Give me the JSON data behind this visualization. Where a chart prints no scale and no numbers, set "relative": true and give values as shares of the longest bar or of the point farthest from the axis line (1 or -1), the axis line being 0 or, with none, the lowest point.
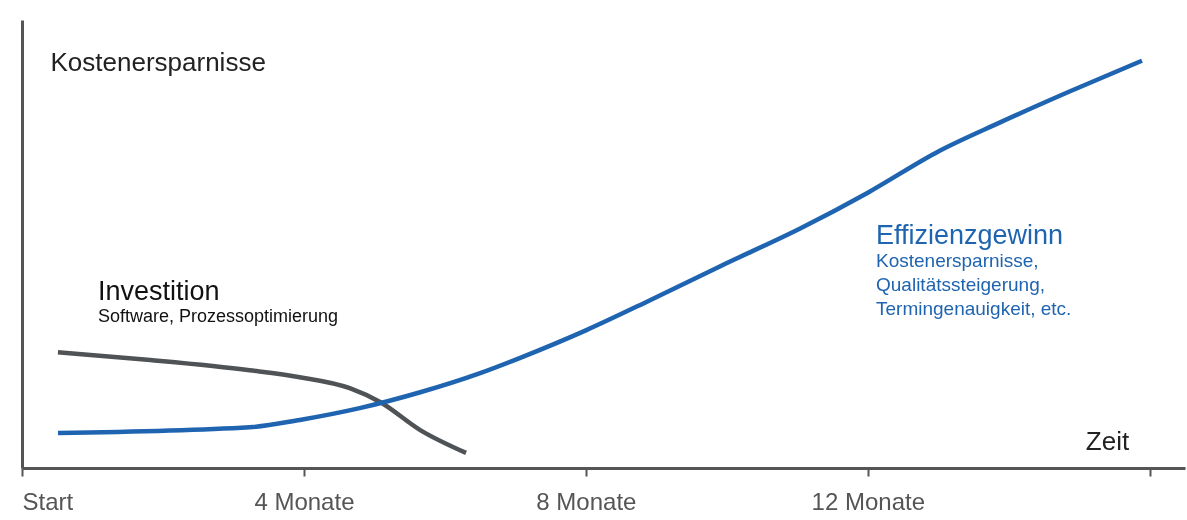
{
  "chart_data": {
    "type": "line",
    "relative": true,
    "xlabel": "Zeit",
    "ylabel": "Kostenersparnisse",
    "xlim": [
      0,
      16.5
    ],
    "xticks": [
      {
        "value": 0,
        "label": "Start"
      },
      {
        "value": 4,
        "label": "4 Monate"
      },
      {
        "value": 8,
        "label": "8 Monate"
      },
      {
        "value": 12,
        "label": "12 Monate"
      },
      {
        "value": 16,
        "label": null
      }
    ],
    "series": [
      {
        "name": "Investition",
        "color": "#505355",
        "x": [
          0.51,
          1.82,
          3.23,
          3.94,
          4.65,
          5.08,
          5.65,
          6.3
        ],
        "values": [
          0.284,
          0.265,
          0.24,
          0.223,
          0.196,
          0.162,
          0.093,
          0.037
        ]
      },
      {
        "name": "Effizienzgewinn",
        "color": "#1f64b0",
        "x": [
          0.51,
          3.23,
          3.94,
          4.79,
          5.65,
          6.5,
          7.06,
          8,
          8.91,
          9.9,
          11.04,
          12,
          13.02,
          13.87,
          14.87,
          15.89
        ],
        "values": [
          0.086,
          0.1,
          0.118,
          0.147,
          0.186,
          0.233,
          0.27,
          0.338,
          0.412,
          0.495,
          0.588,
          0.676,
          0.779,
          0.848,
          0.925,
          1
        ]
      }
    ],
    "annotations": [
      "Software, Prozessoptimierung",
      "Kostenersparnisse,\nQualitätssteigerung,\nTermingenauigkeit, etc."
    ]
  }
}
